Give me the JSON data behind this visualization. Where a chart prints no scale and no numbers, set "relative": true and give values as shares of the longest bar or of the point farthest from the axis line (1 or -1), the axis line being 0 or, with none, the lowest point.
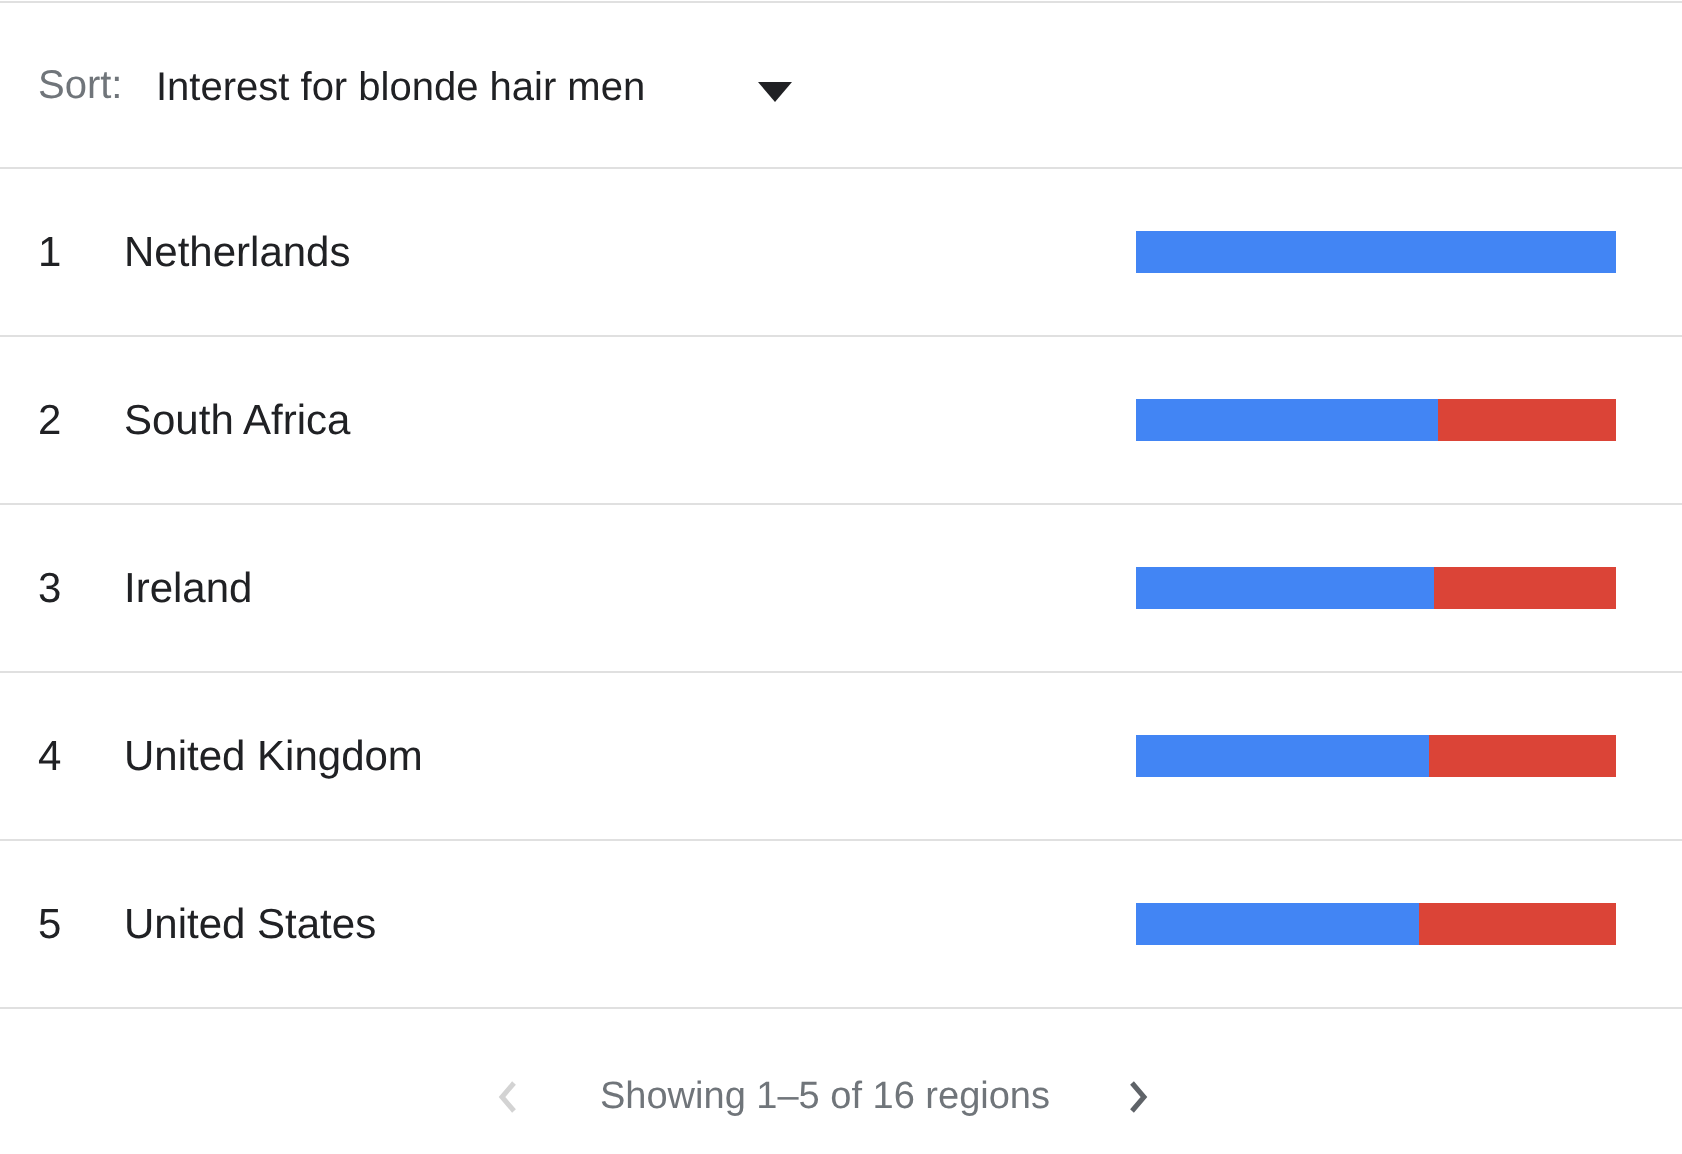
{
  "chart_data": {
    "type": "bar",
    "orientation": "horizontal",
    "stacked": true,
    "relative": true,
    "title": "Interest for blonde hair men",
    "categories": [
      "Netherlands",
      "South Africa",
      "Ireland",
      "United Kingdom",
      "United States"
    ],
    "series": [
      {
        "color": "#4285f4",
        "values": [
          1,
          0.63,
          0.62,
          0.61,
          0.59
        ]
      },
      {
        "color": "#db4437",
        "values": [
          0,
          0.37,
          0.38,
          0.39,
          0.41
        ]
      }
    ],
    "annotations": [
      "Sort:",
      "1",
      "2",
      "3",
      "4",
      "5",
      "Showing 1–5 of 16 regions"
    ]
  }
}
